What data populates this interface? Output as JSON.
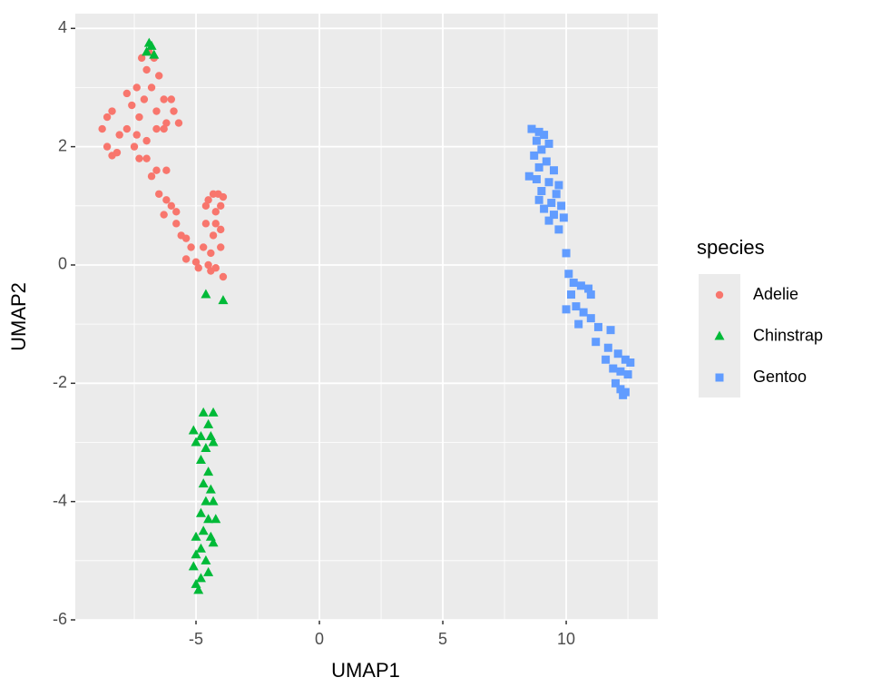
{
  "chart_data": {
    "type": "scatter",
    "x_label": "UMAP1",
    "y_label": "UMAP2",
    "legend_title": "species",
    "legend_position": "right",
    "grid": true,
    "background": "#ebebeb",
    "xlim": [
      -9.89,
      13.71
    ],
    "ylim": [
      -6.0,
      4.25
    ],
    "xticks": [
      -5,
      0,
      5,
      10
    ],
    "yticks": [
      -6,
      -4,
      -2,
      0,
      2,
      4
    ],
    "xminor": [
      -7.5,
      -2.5,
      2.5,
      7.5,
      12.5
    ],
    "yminor": [
      -5,
      -3,
      -1,
      1,
      3
    ],
    "series": [
      {
        "name": "Adelie",
        "color": "#F8766D",
        "shape": "circle",
        "x": [
          -6.9,
          -7.2,
          -6.7,
          -7.0,
          -6.5,
          -7.4,
          -7.8,
          -6.8,
          -6.3,
          -7.1,
          -6.0,
          -7.6,
          -6.6,
          -5.9,
          -8.4,
          -8.6,
          -7.3,
          -6.2,
          -8.8,
          -7.8,
          -6.6,
          -5.7,
          -8.1,
          -7.4,
          -6.3,
          -8.6,
          -8.2,
          -7.5,
          -7.0,
          -8.4,
          -7.3,
          -7.0,
          -6.6,
          -6.2,
          -6.8,
          -6.5,
          -6.2,
          -6.0,
          -5.8,
          -6.3,
          -5.8,
          -5.6,
          -5.4,
          -5.2,
          -5.4,
          -5.0,
          -4.9,
          -4.5,
          -4.4,
          -4.2,
          -3.9,
          -4.7,
          -4.3,
          -4.0,
          -4.6,
          -4.2,
          -4.0,
          -4.5,
          -4.3,
          -4.1,
          -3.9,
          -4.6,
          -4.2,
          -4.0,
          -4.4
        ],
        "values": [
          3.6,
          3.5,
          3.5,
          3.3,
          3.2,
          3.0,
          2.9,
          3.0,
          2.8,
          2.8,
          2.8,
          2.7,
          2.6,
          2.6,
          2.6,
          2.5,
          2.5,
          2.4,
          2.3,
          2.3,
          2.3,
          2.4,
          2.2,
          2.2,
          2.3,
          2.0,
          1.9,
          2.0,
          2.1,
          1.85,
          1.8,
          1.8,
          1.6,
          1.6,
          1.5,
          1.2,
          1.1,
          1.0,
          0.9,
          0.85,
          0.7,
          0.5,
          0.45,
          0.3,
          0.1,
          0.05,
          -0.05,
          0.0,
          -0.1,
          -0.05,
          -0.2,
          0.3,
          0.5,
          0.6,
          0.7,
          0.9,
          1.0,
          1.1,
          1.2,
          1.2,
          1.15,
          1.0,
          0.7,
          0.3,
          0.2
        ]
      },
      {
        "name": "Chinstrap",
        "color": "#00BA38",
        "shape": "triangle",
        "x": [
          -6.9,
          -7.0,
          -6.7,
          -6.8,
          -4.6,
          -3.9,
          -4.7,
          -4.3,
          -4.5,
          -5.1,
          -4.8,
          -4.4,
          -5.0,
          -4.6,
          -4.3,
          -4.8,
          -4.5,
          -4.7,
          -4.4,
          -4.6,
          -4.3,
          -4.8,
          -4.5,
          -4.2,
          -4.7,
          -4.4,
          -5.0,
          -4.8,
          -4.3,
          -5.0,
          -4.6,
          -5.1,
          -4.5,
          -4.8,
          -5.0,
          -4.9
        ],
        "values": [
          3.75,
          3.6,
          3.55,
          3.7,
          -0.5,
          -0.6,
          -2.5,
          -2.5,
          -2.7,
          -2.8,
          -2.9,
          -2.9,
          -3.0,
          -3.1,
          -3.0,
          -3.3,
          -3.5,
          -3.7,
          -3.8,
          -4.0,
          -4.0,
          -4.2,
          -4.3,
          -4.3,
          -4.5,
          -4.6,
          -4.6,
          -4.8,
          -4.7,
          -4.9,
          -5.0,
          -5.1,
          -5.2,
          -5.3,
          -5.4,
          -5.5
        ]
      },
      {
        "name": "Gentoo",
        "color": "#619CFF",
        "shape": "square",
        "x": [
          8.6,
          8.9,
          9.1,
          8.8,
          9.3,
          9.0,
          8.7,
          9.2,
          8.9,
          9.5,
          8.5,
          8.8,
          9.3,
          9.7,
          9.0,
          9.6,
          8.9,
          9.4,
          9.8,
          9.1,
          9.5,
          9.9,
          9.3,
          9.7,
          10.0,
          10.1,
          10.3,
          10.6,
          10.9,
          11.0,
          10.2,
          10.4,
          10.0,
          10.7,
          11.0,
          10.5,
          11.3,
          11.8,
          11.2,
          11.7,
          12.1,
          11.6,
          12.4,
          12.6,
          11.9,
          12.2,
          12.5,
          12.0,
          12.2,
          12.4,
          12.3
        ],
        "values": [
          2.3,
          2.25,
          2.2,
          2.1,
          2.05,
          1.95,
          1.85,
          1.75,
          1.65,
          1.6,
          1.5,
          1.45,
          1.4,
          1.35,
          1.25,
          1.2,
          1.1,
          1.05,
          1.0,
          0.95,
          0.85,
          0.8,
          0.75,
          0.6,
          0.2,
          -0.15,
          -0.3,
          -0.35,
          -0.4,
          -0.5,
          -0.5,
          -0.7,
          -0.75,
          -0.8,
          -0.9,
          -1.0,
          -1.05,
          -1.1,
          -1.3,
          -1.4,
          -1.5,
          -1.6,
          -1.6,
          -1.65,
          -1.75,
          -1.8,
          -1.85,
          -2.0,
          -2.1,
          -2.15,
          -2.2
        ]
      }
    ]
  }
}
